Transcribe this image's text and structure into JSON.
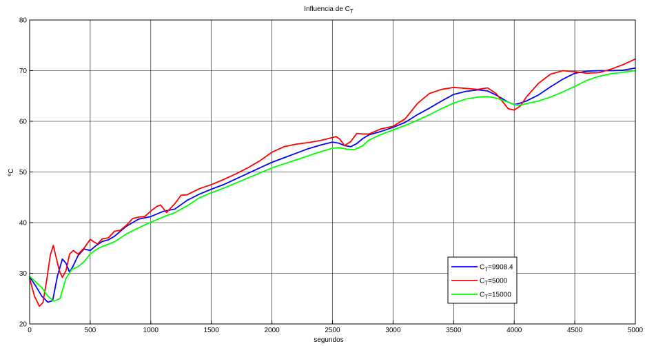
{
  "chart_data": {
    "type": "line",
    "title": "Influencia de C",
    "title_sub": "T",
    "xlabel": "segundos",
    "ylabel": "ºC",
    "xlim": [
      0,
      5000
    ],
    "ylim": [
      20,
      80
    ],
    "xticks": [
      0,
      500,
      1000,
      1500,
      2000,
      2500,
      3000,
      3500,
      4000,
      4500,
      5000
    ],
    "yticks": [
      20,
      30,
      40,
      50,
      60,
      70,
      80
    ],
    "grid": true,
    "legend_position": "bottom-right",
    "series": [
      {
        "name": "C",
        "name_sub": "T",
        "name_rest": "=9908.4",
        "color": "#0000ff",
        "x": [
          0,
          50,
          100,
          150,
          190,
          230,
          270,
          300,
          330,
          360,
          400,
          450,
          500,
          550,
          600,
          650,
          700,
          800,
          900,
          1000,
          1100,
          1200,
          1300,
          1400,
          1500,
          1600,
          1700,
          1800,
          1900,
          2000,
          2100,
          2200,
          2300,
          2400,
          2500,
          2550,
          2600,
          2650,
          2700,
          2750,
          2800,
          2900,
          3000,
          3100,
          3200,
          3300,
          3400,
          3500,
          3600,
          3700,
          3780,
          3850,
          3950,
          4000,
          4050,
          4100,
          4200,
          4300,
          4400,
          4500,
          4600,
          4700,
          4800,
          4900,
          5000
        ],
        "y": [
          29.3,
          27.5,
          25.5,
          24.3,
          24.6,
          29.5,
          32.8,
          32.0,
          30.2,
          31.5,
          33.5,
          34.8,
          34.5,
          35.5,
          36.3,
          36.6,
          37.3,
          39.3,
          40.7,
          41.2,
          42.2,
          42.7,
          44.4,
          45.6,
          46.6,
          47.5,
          48.6,
          49.7,
          50.8,
          51.9,
          52.8,
          53.7,
          54.6,
          55.3,
          55.9,
          55.7,
          55.2,
          55.0,
          55.6,
          56.6,
          57.3,
          58.0,
          58.8,
          59.8,
          61.3,
          62.6,
          64.0,
          65.3,
          65.9,
          66.2,
          66.0,
          65.2,
          63.8,
          63.3,
          63.6,
          64.0,
          65.2,
          66.8,
          68.3,
          69.5,
          69.9,
          70.0,
          70.0,
          70.1,
          70.5
        ]
      },
      {
        "name": "C",
        "name_sub": "T",
        "name_rest": "=5000",
        "color": "#ff0000",
        "x": [
          0,
          40,
          80,
          110,
          140,
          170,
          195,
          220,
          245,
          270,
          300,
          330,
          360,
          400,
          450,
          500,
          530,
          560,
          600,
          650,
          700,
          750,
          800,
          850,
          900,
          950,
          1000,
          1050,
          1080,
          1130,
          1200,
          1250,
          1300,
          1400,
          1500,
          1600,
          1700,
          1800,
          1900,
          2000,
          2100,
          2200,
          2300,
          2400,
          2500,
          2530,
          2560,
          2600,
          2650,
          2700,
          2750,
          2800,
          2900,
          3000,
          3100,
          3200,
          3300,
          3400,
          3500,
          3600,
          3650,
          3700,
          3780,
          3850,
          3900,
          3950,
          4000,
          4050,
          4100,
          4200,
          4300,
          4400,
          4500,
          4600,
          4700,
          4800,
          4900,
          5000
        ],
        "y": [
          29.0,
          25.5,
          23.5,
          24.2,
          28.5,
          33.5,
          35.5,
          33.0,
          30.5,
          29.2,
          30.5,
          33.8,
          34.5,
          33.8,
          35.0,
          36.7,
          36.2,
          35.8,
          36.8,
          37.0,
          38.3,
          38.5,
          39.5,
          40.8,
          41.1,
          41.2,
          42.3,
          43.2,
          43.5,
          42.0,
          43.8,
          45.4,
          45.5,
          46.7,
          47.5,
          48.5,
          49.6,
          50.8,
          52.2,
          53.9,
          55.0,
          55.5,
          55.8,
          56.2,
          56.8,
          57.0,
          56.5,
          55.2,
          56.0,
          57.6,
          57.5,
          57.5,
          58.5,
          59.0,
          60.5,
          63.5,
          65.5,
          66.3,
          66.7,
          66.5,
          66.4,
          66.3,
          66.6,
          65.5,
          64.0,
          62.5,
          62.2,
          63.0,
          64.8,
          67.5,
          69.3,
          70.0,
          69.8,
          69.5,
          69.6,
          70.3,
          71.2,
          72.3
        ]
      },
      {
        "name": "C",
        "name_sub": "T",
        "name_rest": "=15000",
        "color": "#00ff00",
        "x": [
          0,
          50,
          100,
          150,
          200,
          250,
          300,
          350,
          400,
          450,
          500,
          550,
          600,
          700,
          800,
          900,
          1000,
          1100,
          1200,
          1300,
          1400,
          1500,
          1600,
          1700,
          1800,
          1900,
          2000,
          2100,
          2200,
          2300,
          2400,
          2500,
          2560,
          2620,
          2680,
          2750,
          2800,
          2900,
          3000,
          3100,
          3200,
          3300,
          3400,
          3500,
          3600,
          3700,
          3780,
          3850,
          3950,
          4000,
          4050,
          4100,
          4200,
          4300,
          4400,
          4500,
          4600,
          4700,
          4800,
          4900,
          5000
        ],
        "y": [
          29.4,
          28.3,
          27.2,
          25.5,
          24.5,
          25.0,
          29.0,
          30.8,
          31.3,
          32.3,
          33.8,
          34.7,
          35.3,
          36.2,
          37.8,
          39.0,
          40.1,
          41.1,
          42.0,
          43.3,
          44.9,
          45.9,
          46.8,
          47.8,
          48.8,
          49.8,
          50.8,
          51.6,
          52.4,
          53.2,
          54.0,
          54.7,
          54.8,
          54.5,
          54.4,
          55.2,
          56.3,
          57.4,
          58.3,
          59.2,
          60.2,
          61.3,
          62.5,
          63.6,
          64.4,
          64.8,
          64.9,
          64.6,
          63.8,
          63.3,
          63.2,
          63.5,
          64.0,
          64.8,
          65.8,
          66.9,
          68.1,
          68.9,
          69.4,
          69.7,
          70.0
        ]
      }
    ]
  }
}
